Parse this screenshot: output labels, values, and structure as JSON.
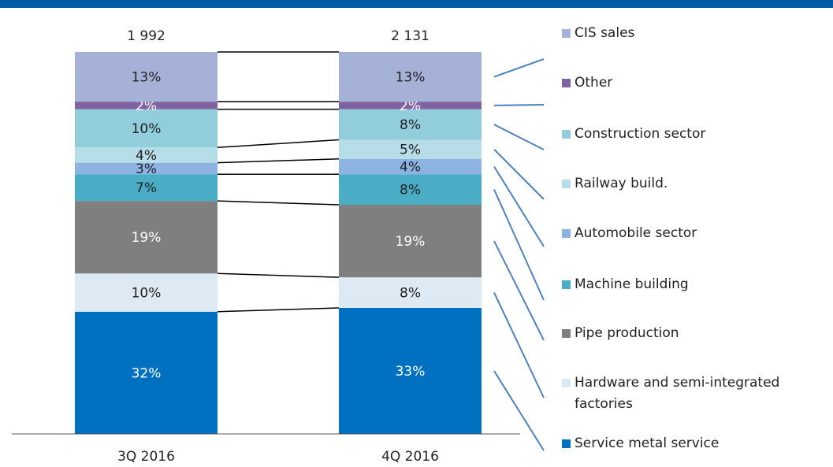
{
  "chart_data": {
    "type": "stacked_bar_100",
    "categories": [
      "3Q 2016",
      "4Q 2016"
    ],
    "totals": [
      1992,
      2131
    ],
    "total_labels": [
      "1 992",
      "2 131"
    ],
    "ylim": [
      0,
      100
    ],
    "series": [
      {
        "name": "Service metal service",
        "color": "#0070c0",
        "values": [
          32,
          33
        ],
        "value_labels": [
          "32%",
          "33%"
        ]
      },
      {
        "name": "Hardware and semi-integrated factories",
        "color": "#dde9f3",
        "values": [
          10,
          8
        ],
        "value_labels": [
          "10%",
          "8%"
        ]
      },
      {
        "name": "Pipe production",
        "color": "#7f7f7f",
        "values": [
          19,
          19
        ],
        "value_labels": [
          "19%",
          "19%"
        ]
      },
      {
        "name": "Machine building",
        "color": "#4bacc6",
        "values": [
          7,
          8
        ],
        "value_labels": [
          "7%",
          "8%"
        ]
      },
      {
        "name": "Automobile sector",
        "color": "#8db3e2",
        "values": [
          3,
          4
        ],
        "value_labels": [
          "3%",
          "4%"
        ]
      },
      {
        "name": "Railway build.",
        "color": "#b7dde8",
        "values": [
          4,
          5
        ],
        "value_labels": [
          "4%",
          "5%"
        ]
      },
      {
        "name": "Construction sector",
        "color": "#92cddc",
        "values": [
          10,
          8
        ],
        "value_labels": [
          "10%",
          "8%"
        ]
      },
      {
        "name": "Other",
        "color": "#8064a2",
        "values": [
          2,
          2
        ],
        "value_labels": [
          "2%",
          "2%"
        ]
      },
      {
        "name": "CIS sales",
        "color": "#a5b1d6",
        "values": [
          13,
          13
        ],
        "value_labels": [
          "13%",
          "13%"
        ]
      }
    ]
  }
}
